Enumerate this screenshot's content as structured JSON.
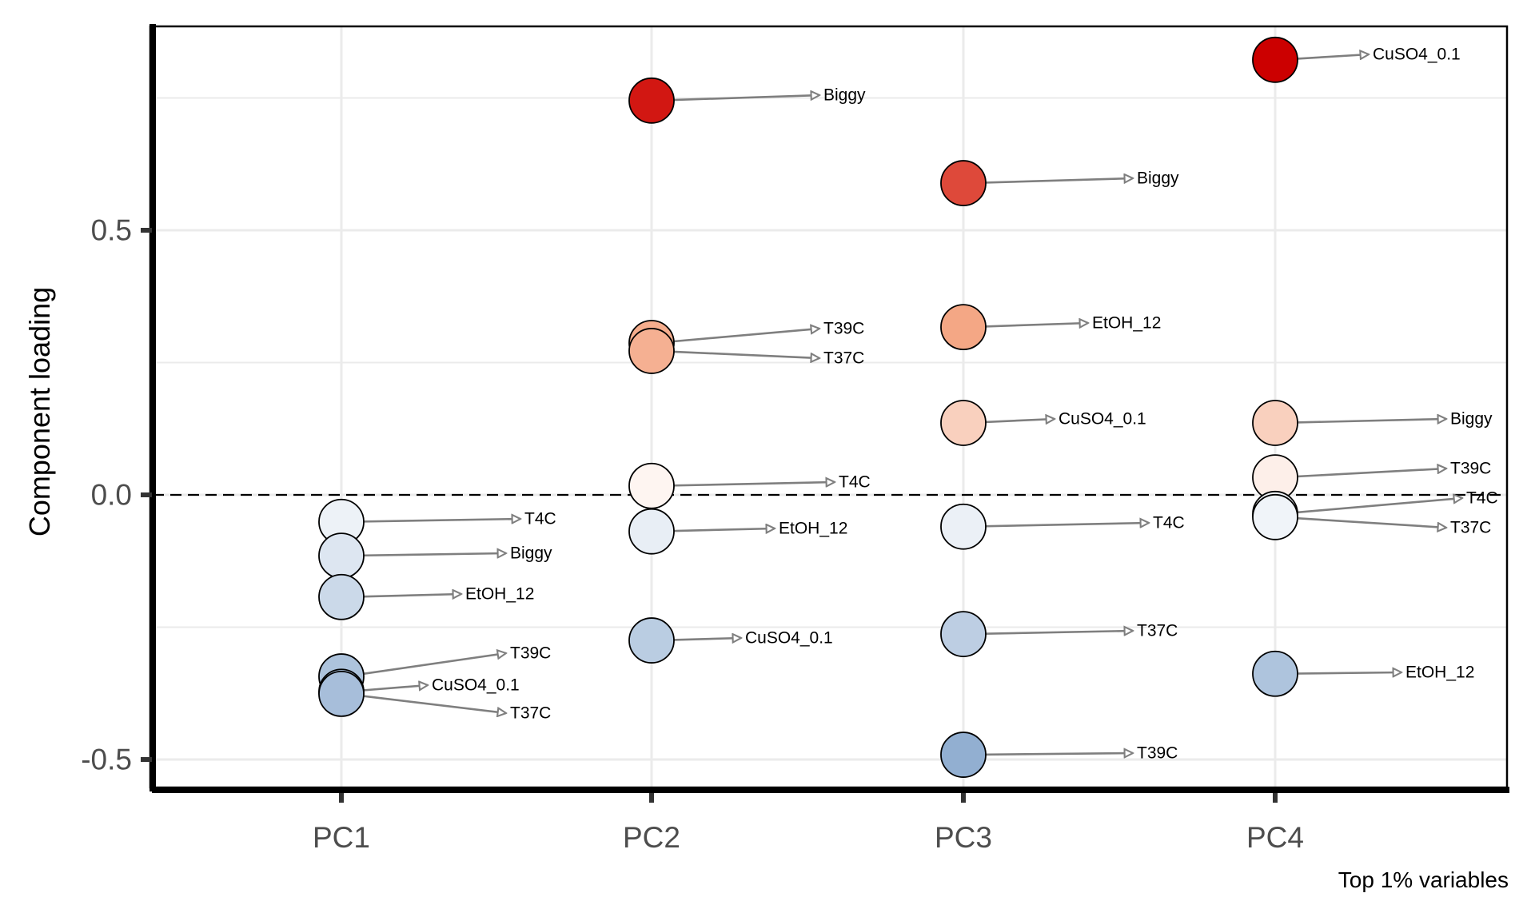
{
  "chart_data": {
    "type": "scatter",
    "title": "",
    "xlabel": "",
    "ylabel": "Component loading",
    "caption": "Top 1% variables",
    "categories": [
      "PC1",
      "PC2",
      "PC3",
      "PC4"
    ],
    "y_ticks": [
      -0.5,
      0.0,
      0.5
    ],
    "y_tick_labels": [
      "-0.5",
      "0.0",
      "0.5"
    ],
    "ylim": [
      -0.56,
      0.87
    ],
    "grid": true,
    "reference_line": {
      "y": 0,
      "style": "dashed"
    },
    "color_scale": {
      "low": "#92AFD1",
      "mid": "#FFFFFF",
      "high": "#CC0000"
    },
    "series": [
      {
        "component": "PC1",
        "points": [
          {
            "label": "T4C",
            "value": -0.051
          },
          {
            "label": "Biggy",
            "value": -0.115
          },
          {
            "label": "EtOH_12",
            "value": -0.193
          },
          {
            "label": "T39C",
            "value": -0.343
          },
          {
            "label": "CuSO4_0.1",
            "value": -0.372
          },
          {
            "label": "T37C",
            "value": -0.376
          }
        ]
      },
      {
        "component": "PC2",
        "points": [
          {
            "label": "Biggy",
            "value": 0.745
          },
          {
            "label": "T39C",
            "value": 0.287
          },
          {
            "label": "T37C",
            "value": 0.272
          },
          {
            "label": "T4C",
            "value": 0.017
          },
          {
            "label": "EtOH_12",
            "value": -0.069
          },
          {
            "label": "CuSO4_0.1",
            "value": -0.275
          }
        ]
      },
      {
        "component": "PC3",
        "points": [
          {
            "label": "Biggy",
            "value": 0.589
          },
          {
            "label": "EtOH_12",
            "value": 0.317
          },
          {
            "label": "CuSO4_0.1",
            "value": 0.136
          },
          {
            "label": "T4C",
            "value": -0.06
          },
          {
            "label": "T37C",
            "value": -0.263
          },
          {
            "label": "T39C",
            "value": -0.491
          }
        ]
      },
      {
        "component": "PC4",
        "points": [
          {
            "label": "CuSO4_0.1",
            "value": 0.822
          },
          {
            "label": "Biggy",
            "value": 0.136
          },
          {
            "label": "T39C",
            "value": 0.033
          },
          {
            "label": "T4C",
            "value": -0.036
          },
          {
            "label": "T37C",
            "value": -0.042
          },
          {
            "label": "EtOH_12",
            "value": -0.338
          }
        ]
      }
    ]
  }
}
